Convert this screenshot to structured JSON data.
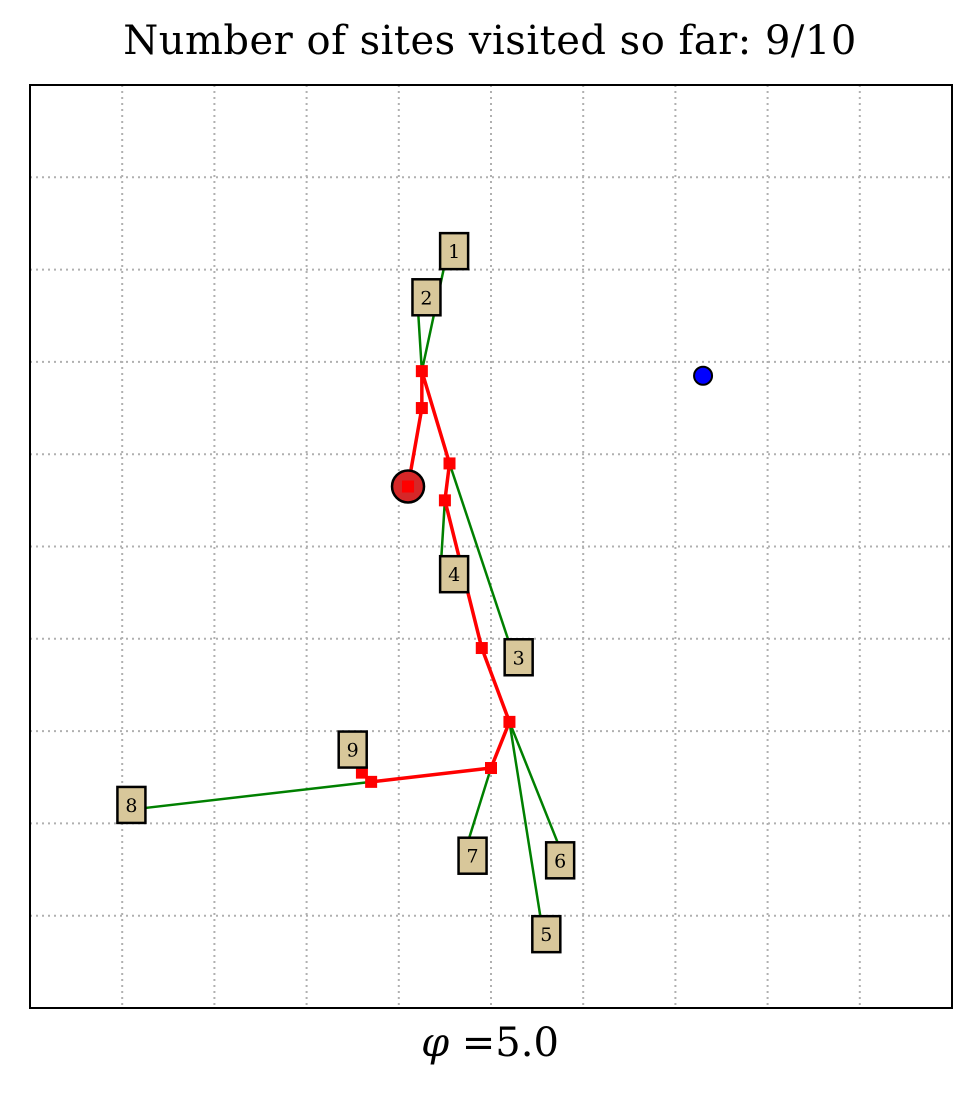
{
  "title": "Number of sites visited so far: 9/10",
  "xlabel": {
    "symbol": "φ",
    "text": " =5.0"
  },
  "chart_data": {
    "type": "line",
    "title": "Number of sites visited so far: 9/10",
    "xlabel": "φ =5.0",
    "ylabel": "",
    "xlim": [
      0,
      10
    ],
    "ylim": [
      0,
      10
    ],
    "grid": true,
    "tick_labels_shown": false,
    "colors": {
      "route": "#ff0000",
      "connector": "#008000",
      "label_fill": "#d8c79a",
      "blue_point": "#0000ff",
      "start_point": "#d62728"
    },
    "sites": [
      {
        "label": "1",
        "x": 4.6,
        "y": 8.2
      },
      {
        "label": "2",
        "x": 4.3,
        "y": 7.7
      },
      {
        "label": "3",
        "x": 5.3,
        "y": 3.8
      },
      {
        "label": "4",
        "x": 4.6,
        "y": 4.7
      },
      {
        "label": "5",
        "x": 5.6,
        "y": 0.8
      },
      {
        "label": "6",
        "x": 5.75,
        "y": 1.6
      },
      {
        "label": "7",
        "x": 4.8,
        "y": 1.65
      },
      {
        "label": "8",
        "x": 1.1,
        "y": 2.2
      },
      {
        "label": "9",
        "x": 3.5,
        "y": 2.8
      }
    ],
    "route": [
      {
        "x": 4.1,
        "y": 5.65
      },
      {
        "x": 4.25,
        "y": 6.5
      },
      {
        "x": 4.25,
        "y": 6.9
      },
      {
        "x": 4.55,
        "y": 5.9
      },
      {
        "x": 4.5,
        "y": 5.5
      },
      {
        "x": 4.9,
        "y": 3.9
      },
      {
        "x": 5.2,
        "y": 3.1
      },
      {
        "x": 5.0,
        "y": 2.6
      },
      {
        "x": 3.7,
        "y": 2.45
      },
      {
        "x": 3.6,
        "y": 2.55
      }
    ],
    "connectors": [
      {
        "from": {
          "x": 4.55,
          "y": 8.3
        },
        "to": {
          "x": 4.25,
          "y": 6.9
        }
      },
      {
        "from": {
          "x": 4.2,
          "y": 7.7
        },
        "to": {
          "x": 4.25,
          "y": 6.9
        }
      },
      {
        "from": {
          "x": 4.55,
          "y": 5.9
        },
        "to": {
          "x": 5.25,
          "y": 3.8
        }
      },
      {
        "from": {
          "x": 4.5,
          "y": 5.5
        },
        "to": {
          "x": 4.45,
          "y": 4.7
        }
      },
      {
        "from": {
          "x": 5.2,
          "y": 3.1
        },
        "to": {
          "x": 5.55,
          "y": 0.9
        }
      },
      {
        "from": {
          "x": 5.2,
          "y": 3.1
        },
        "to": {
          "x": 5.8,
          "y": 1.6
        }
      },
      {
        "from": {
          "x": 5.0,
          "y": 2.6
        },
        "to": {
          "x": 4.75,
          "y": 1.8
        }
      },
      {
        "from": {
          "x": 3.7,
          "y": 2.45
        },
        "to": {
          "x": 1.1,
          "y": 2.15
        }
      }
    ],
    "blue_point": {
      "x": 7.3,
      "y": 6.85
    },
    "start_point": {
      "x": 4.1,
      "y": 5.65
    }
  }
}
